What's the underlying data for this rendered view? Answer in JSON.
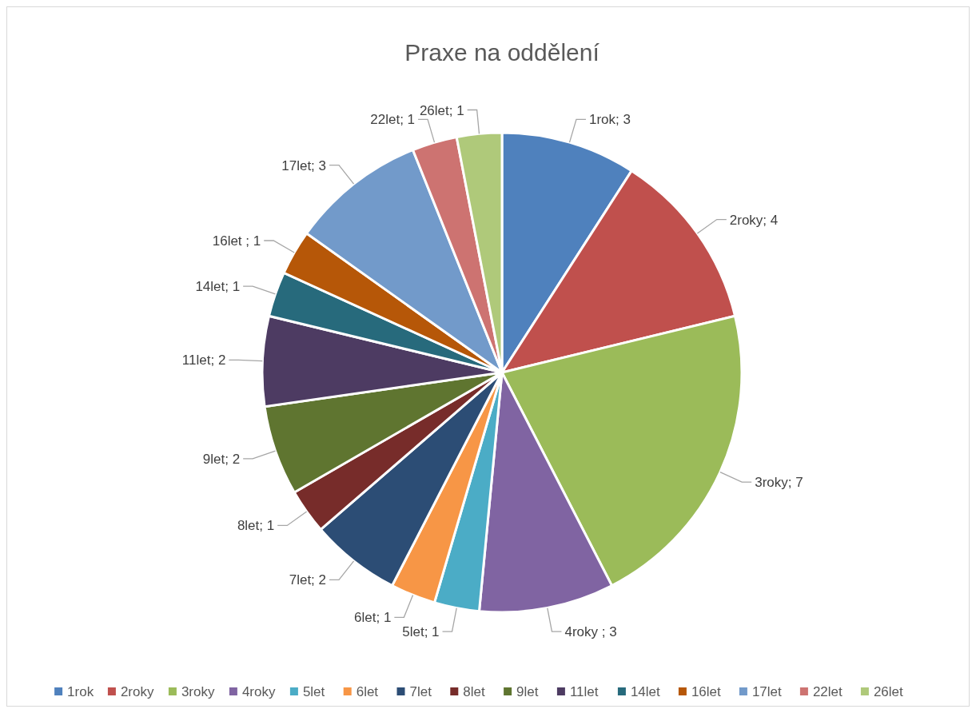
{
  "chart_data": {
    "type": "pie",
    "title": "Praxe na oddělení",
    "categories": [
      "1rok",
      "2roky",
      "3roky",
      "4roky",
      "5let",
      "6let",
      "7let",
      "8let",
      "9let",
      "11let",
      "14let",
      "16let",
      "17let",
      "22let",
      "26let"
    ],
    "values": [
      3,
      4,
      7,
      3,
      1,
      1,
      2,
      1,
      2,
      2,
      1,
      1,
      3,
      1,
      1
    ],
    "colors": [
      "#4f81bd",
      "#c0504d",
      "#9bbb59",
      "#8064a2",
      "#4bacc6",
      "#f79646",
      "#2c4d75",
      "#772c2a",
      "#5f7530",
      "#4d3b62",
      "#276a7c",
      "#b65708",
      "#729aca",
      "#cd7371",
      "#afc97a"
    ],
    "value_labels": [
      "1rok; 3",
      "2roky; 4",
      "3roky; 7",
      "4roky ; 3",
      "5let; 1",
      "6let; 1",
      "7let; 2",
      "8let; 1",
      "9let; 2",
      "11let; 2",
      "14let; 1",
      "16let ; 1",
      "17let; 3",
      "22let; 1",
      "26let; 1"
    ],
    "legend": "bottom"
  }
}
